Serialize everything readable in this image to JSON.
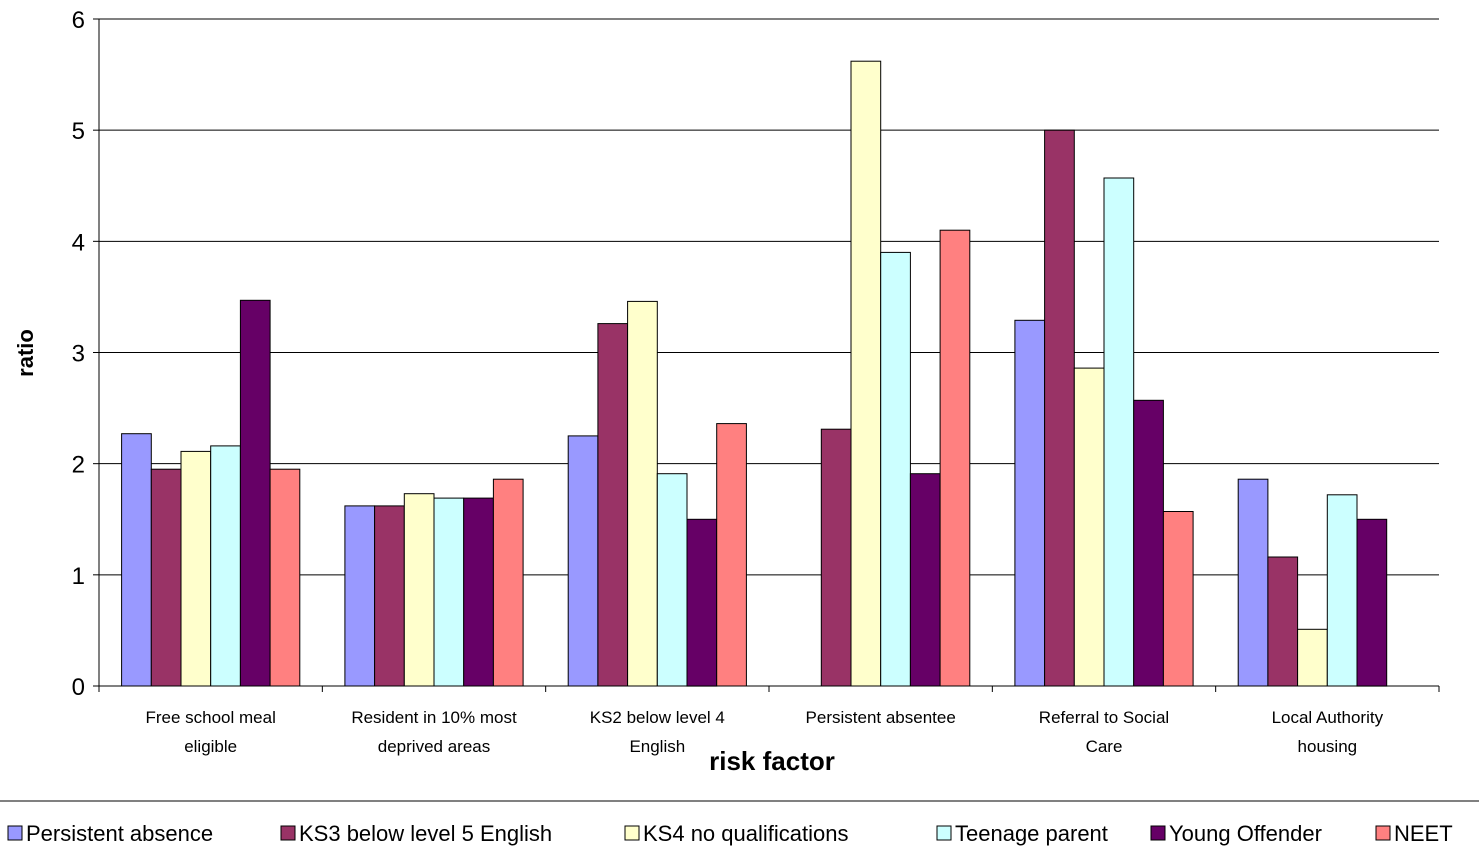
{
  "chart_data": {
    "type": "bar",
    "title": "",
    "xlabel": "risk factor",
    "ylabel": "ratio",
    "ylim": [
      0,
      6
    ],
    "yticks": [
      "0",
      "1",
      "2",
      "3",
      "4",
      "5",
      "6"
    ],
    "grid": true,
    "legend_position": "bottom",
    "categories": [
      [
        "Free school meal",
        "eligible"
      ],
      [
        "Resident in 10% most",
        "deprived areas"
      ],
      [
        "KS2 below  level 4",
        "English"
      ],
      [
        "Persistent absentee"
      ],
      [
        "Referral to Social",
        "Care"
      ],
      [
        "Local Authority",
        "housing"
      ]
    ],
    "series": [
      {
        "name": "Persistent absence",
        "color": "#9999ff",
        "values": [
          2.27,
          1.62,
          2.25,
          null,
          3.29,
          1.86
        ]
      },
      {
        "name": "KS3 below level 5 English",
        "color": "#993366",
        "values": [
          1.95,
          1.62,
          3.26,
          2.31,
          5.0,
          1.16
        ]
      },
      {
        "name": "KS4 no qualifications",
        "color": "#ffffcc",
        "values": [
          2.11,
          1.73,
          3.46,
          5.62,
          2.86,
          0.51
        ]
      },
      {
        "name": "Teenage parent",
        "color": "#ccffff",
        "values": [
          2.16,
          1.69,
          1.91,
          3.9,
          4.57,
          1.72
        ]
      },
      {
        "name": "Young Offender",
        "color": "#660066",
        "values": [
          3.47,
          1.69,
          1.5,
          1.91,
          2.57,
          1.5
        ]
      },
      {
        "name": "NEET",
        "color": "#ff8080",
        "values": [
          1.95,
          1.86,
          2.36,
          4.1,
          1.57,
          null
        ]
      }
    ]
  }
}
